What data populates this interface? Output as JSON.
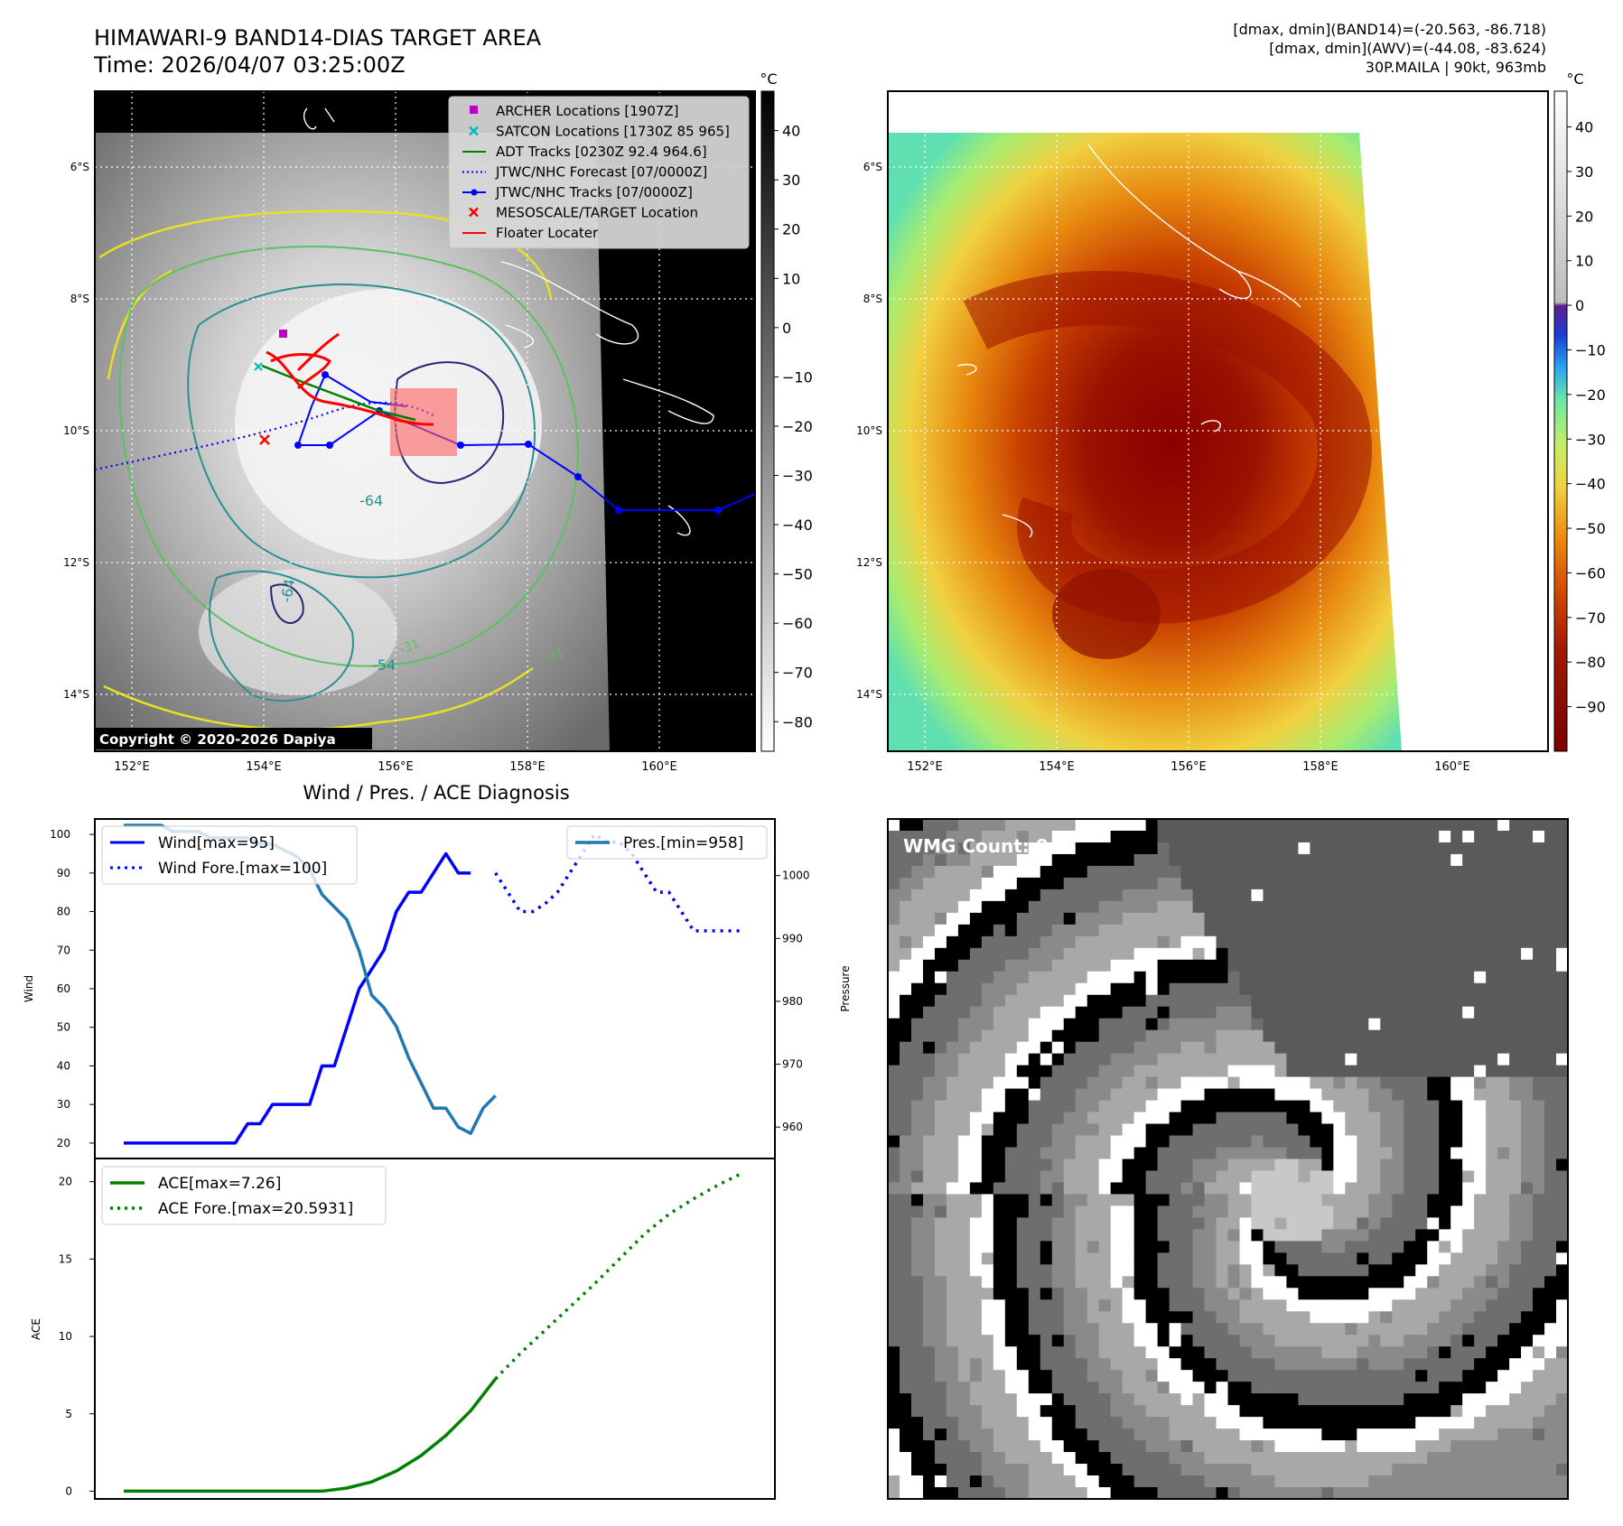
{
  "header": {
    "title_line1": "HIMAWARI-9 BAND14-DIAS TARGET AREA",
    "title_line2": "Time: 2026/04/07 03:25:00Z",
    "info_line1": "[dmax, dmin](BAND14)=(-20.563, -86.718)",
    "info_line2": "[dmax, dmin](AWV)=(-44.08, -83.624)",
    "info_line3": "30P.MAILA | 90kt, 963mb"
  },
  "maps": {
    "lat_labels": [
      "6°S",
      "8°S",
      "10°S",
      "12°S",
      "14°S"
    ],
    "lon_labels": [
      "152°E",
      "154°E",
      "156°E",
      "158°E",
      "160°E"
    ],
    "copyright": "Copyright © 2020-2026 Dapiya",
    "contour_labels": [
      "-64",
      "-64",
      "-54",
      "-31",
      "-31"
    ],
    "legend": [
      {
        "label": "ARCHER Locations [1907Z]",
        "color": "#c000c0",
        "marker": "square"
      },
      {
        "label": "SATCON Locations [1730Z 85 965]",
        "color": "#00b8b8",
        "marker": "x"
      },
      {
        "label": "ADT Tracks [0230Z 92.4 964.6]",
        "color": "#008000",
        "marker": "line"
      },
      {
        "label": "JTWC/NHC Forecast [07/0000Z]",
        "color": "#0000ff",
        "marker": "dotted"
      },
      {
        "label": "JTWC/NHC Tracks [07/0000Z]",
        "color": "#0000ff",
        "marker": "line-dot"
      },
      {
        "label": "MESOSCALE/TARGET Location",
        "color": "#ff0000",
        "marker": "x"
      },
      {
        "label": "Floater Locater",
        "color": "#ff0000",
        "marker": "line"
      }
    ],
    "left_colorbar": {
      "unit": "°C",
      "ticks": [
        "40",
        "30",
        "20",
        "10",
        "0",
        "−10",
        "−20",
        "−30",
        "−40",
        "−50",
        "−60",
        "−70",
        "−80"
      ],
      "range": [
        -86,
        48
      ]
    },
    "right_colorbar": {
      "unit": "°C",
      "ticks": [
        "40",
        "30",
        "20",
        "10",
        "0",
        "−10",
        "−20",
        "−30",
        "−40",
        "−50",
        "−60",
        "−70",
        "−80",
        "−90"
      ],
      "range": [
        -100,
        48
      ]
    },
    "wmg_label": "WMG Count: 0"
  },
  "chart_data": [
    {
      "type": "line",
      "title": "Wind / Pres. / ACE Diagnosis",
      "ylabel": "Wind",
      "ylabel2": "Pressure",
      "ylim": [
        16,
        104
      ],
      "ylim2": [
        955,
        1009
      ],
      "yticks": [
        "20",
        "30",
        "40",
        "50",
        "60",
        "70",
        "80",
        "90",
        "100"
      ],
      "yticks2": [
        "960",
        "970",
        "980",
        "990",
        "1000"
      ],
      "legend_left": [
        "Wind[max=95]",
        "Wind Fore.[max=100]"
      ],
      "legend_right": [
        "Pres.[min=958]"
      ],
      "series": [
        {
          "name": "Wind[max=95]",
          "color": "#0000ff",
          "style": "solid",
          "x": [
            0,
            1,
            2,
            3,
            4,
            5,
            6,
            7,
            8,
            9,
            10,
            11,
            12,
            13,
            14,
            15,
            16,
            17,
            18,
            19,
            20,
            21,
            22,
            23,
            24,
            25,
            26,
            27,
            28,
            29,
            30
          ],
          "values": [
            20,
            20,
            20,
            20,
            20,
            20,
            20,
            20,
            20,
            20,
            25,
            25,
            30,
            30,
            30,
            30,
            40,
            40,
            50,
            60,
            65,
            70,
            80,
            85,
            85,
            90,
            95,
            90,
            90,
            null,
            null
          ]
        },
        {
          "name": "Wind Fore.[max=100]",
          "color": "#0000ff",
          "style": "dotted",
          "x": [
            30,
            31,
            32,
            33,
            34,
            35,
            36,
            37,
            38,
            39,
            40,
            41,
            42,
            43,
            44,
            45,
            46,
            47,
            48,
            49,
            50
          ],
          "values": [
            90,
            85,
            80,
            80,
            82,
            85,
            90,
            95,
            100,
            98,
            98,
            95,
            90,
            85,
            85,
            80,
            75,
            75,
            75,
            75,
            75
          ]
        },
        {
          "name": "Pres.[min=958]",
          "color": "#1f77b4",
          "style": "solid",
          "axis": "right",
          "x": [
            0,
            1,
            2,
            3,
            4,
            5,
            6,
            7,
            8,
            9,
            10,
            11,
            12,
            13,
            14,
            15,
            16,
            17,
            18,
            19,
            20,
            21,
            22,
            23,
            24,
            25,
            26,
            27,
            28,
            29,
            30
          ],
          "values": [
            1008,
            1008,
            1008,
            1008,
            1007,
            1007,
            1007,
            1006,
            1006,
            1006,
            1006,
            1005,
            1005,
            1004,
            1003,
            1001,
            997,
            995,
            993,
            988,
            981,
            979,
            976,
            971,
            967,
            963,
            963,
            960,
            959,
            963,
            965
          ]
        }
      ]
    },
    {
      "type": "line",
      "ylabel": "ACE",
      "ylim": [
        -0.5,
        21.5
      ],
      "yticks": [
        "0",
        "5",
        "10",
        "15",
        "20"
      ],
      "legend": [
        "ACE[max=7.26]",
        "ACE Fore.[max=20.5931]"
      ],
      "series": [
        {
          "name": "ACE[max=7.26]",
          "color": "#008000",
          "style": "solid",
          "x": [
            0,
            4,
            8,
            12,
            16,
            18,
            20,
            22,
            24,
            26,
            28,
            30
          ],
          "values": [
            0,
            0,
            0,
            0,
            0,
            0.2,
            0.6,
            1.3,
            2.3,
            3.6,
            5.2,
            7.26
          ]
        },
        {
          "name": "ACE Fore.[max=20.5931]",
          "color": "#008000",
          "style": "dotted",
          "x": [
            30,
            32,
            34,
            36,
            38,
            40,
            42,
            44,
            46,
            48,
            50
          ],
          "values": [
            7.26,
            8.9,
            10.4,
            11.9,
            13.4,
            15.0,
            16.6,
            17.9,
            18.9,
            19.8,
            20.59
          ]
        }
      ]
    }
  ]
}
